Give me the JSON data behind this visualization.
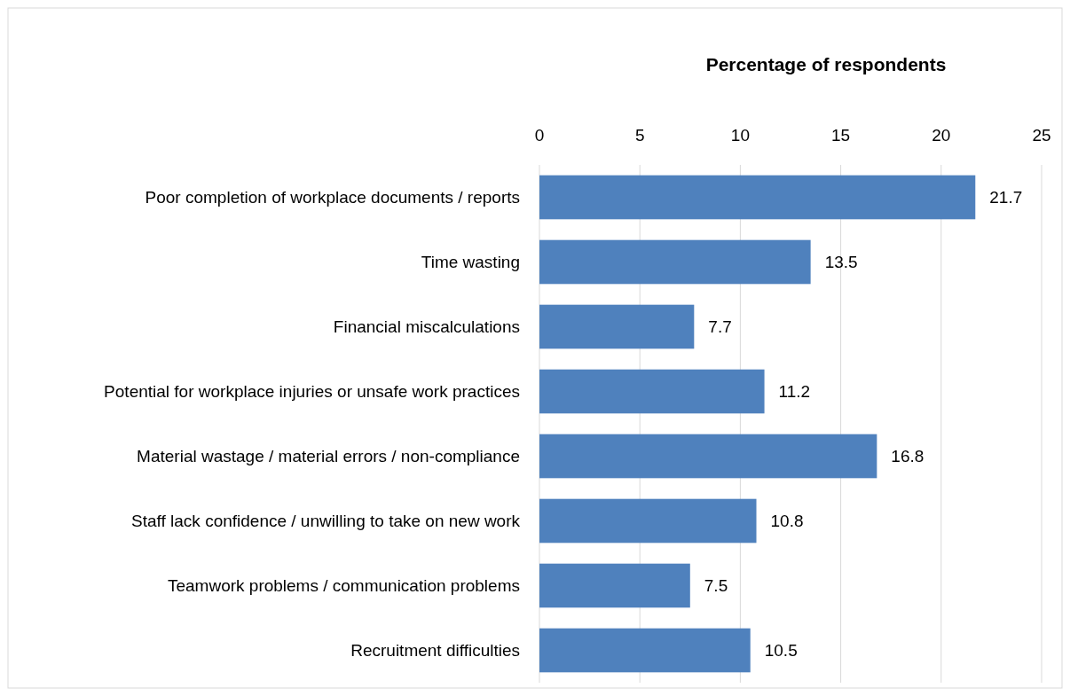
{
  "chart_data": {
    "type": "bar",
    "orientation": "horizontal",
    "xlabel": "Percentage of respondents",
    "categories": [
      "Poor completion of workplace documents / reports",
      "Time wasting",
      "Financial miscalculations",
      "Potential for workplace injuries or unsafe work practices",
      "Material wastage / material errors / non-compliance",
      "Staff lack confidence / unwilling to take on new work",
      "Teamwork problems / communication problems",
      "Recruitment difficulties"
    ],
    "values": [
      21.7,
      13.5,
      7.7,
      11.2,
      16.8,
      10.8,
      7.5,
      10.5
    ],
    "color": "#4f81bd",
    "xlim": [
      0,
      25
    ],
    "xticks": [
      0,
      5,
      10,
      15,
      20,
      25
    ],
    "grid": "x",
    "data_labels": true
  }
}
